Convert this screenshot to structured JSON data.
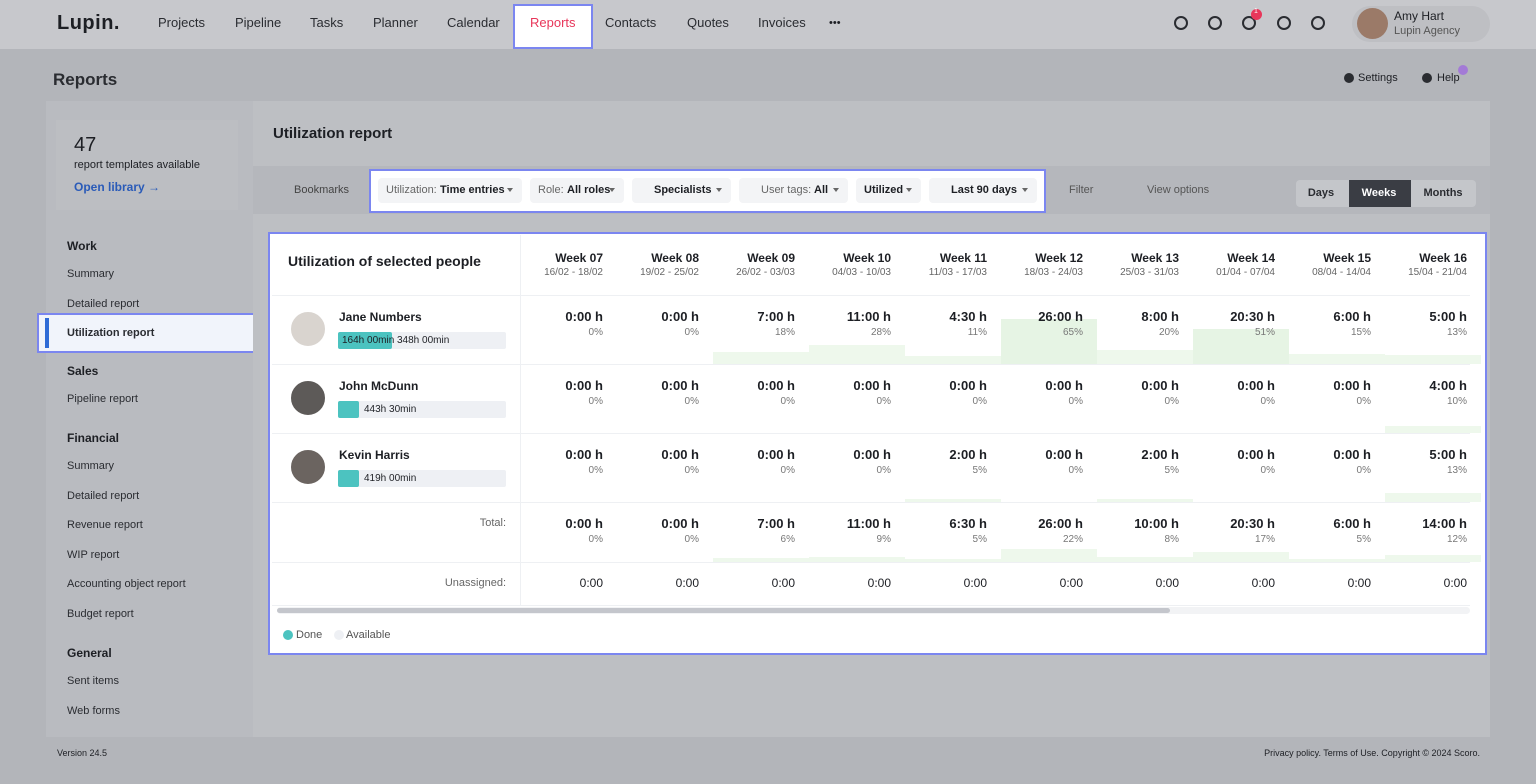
{
  "nav": {
    "logo": "Lupin.",
    "items": [
      "Projects",
      "Pipeline",
      "Tasks",
      "Planner",
      "Calendar",
      "Reports",
      "Contacts",
      "Quotes",
      "Invoices"
    ],
    "more": "•••",
    "badge": "1",
    "user_name": "Amy Hart",
    "user_org": "Lupin Agency"
  },
  "page": {
    "title": "Reports",
    "settings": "Settings",
    "help": "Help"
  },
  "sidebar": {
    "count": "47",
    "count_label": "report templates available",
    "library_link": "Open library →",
    "sections": [
      {
        "title": "Work",
        "items": [
          "Summary",
          "Detailed report",
          "Utilization report"
        ]
      },
      {
        "title": "Sales",
        "items": [
          "Pipeline report"
        ]
      },
      {
        "title": "Financial",
        "items": [
          "Summary",
          "Detailed report",
          "Revenue report",
          "WIP report",
          "Accounting object report",
          "Budget report"
        ]
      },
      {
        "title": "General",
        "items": [
          "Sent items",
          "Web forms"
        ]
      }
    ]
  },
  "report": {
    "title": "Utilization report",
    "bookmarks": "Bookmarks",
    "filters": [
      {
        "label": "Utilization:",
        "value": "Time entries"
      },
      {
        "label": "Role:",
        "value": "All roles"
      },
      {
        "label": "",
        "value": "Specialists"
      },
      {
        "label": "User tags:",
        "value": "All"
      },
      {
        "label": "",
        "value": "Utilized"
      },
      {
        "label": "",
        "value": "Last 90 days"
      }
    ],
    "filter": "Filter",
    "view_options": "View options",
    "periods": [
      "Days",
      "Weeks",
      "Months"
    ]
  },
  "table": {
    "heading": "Utilization of selected people",
    "weeks": [
      {
        "label": "Week 07",
        "range": "16/02 - 18/02"
      },
      {
        "label": "Week 08",
        "range": "19/02 - 25/02"
      },
      {
        "label": "Week 09",
        "range": "26/02 - 03/03"
      },
      {
        "label": "Week 10",
        "range": "04/03 - 10/03"
      },
      {
        "label": "Week 11",
        "range": "11/03 - 17/03"
      },
      {
        "label": "Week 12",
        "range": "18/03 - 24/03"
      },
      {
        "label": "Week 13",
        "range": "25/03 - 31/03"
      },
      {
        "label": "Week 14",
        "range": "01/04 - 07/04"
      },
      {
        "label": "Week 15",
        "range": "08/04 - 14/04"
      },
      {
        "label": "Week 16",
        "range": "15/04 - 21/04"
      }
    ],
    "people": [
      {
        "name": "Jane Numbers",
        "done": "164h 00min",
        "available": "348h 00min",
        "hours": [
          "0:00 h",
          "0:00 h",
          "7:00 h",
          "11:00 h",
          "4:30 h",
          "26:00 h",
          "8:00 h",
          "20:30 h",
          "6:00 h",
          "5:00 h"
        ],
        "percent": [
          "0%",
          "0%",
          "18%",
          "28%",
          "11%",
          "65%",
          "20%",
          "51%",
          "15%",
          "13%"
        ]
      },
      {
        "name": "John McDunn",
        "done": "443h 30min",
        "hours": [
          "0:00 h",
          "0:00 h",
          "0:00 h",
          "0:00 h",
          "0:00 h",
          "0:00 h",
          "0:00 h",
          "0:00 h",
          "0:00 h",
          "4:00 h"
        ],
        "percent": [
          "0%",
          "0%",
          "0%",
          "0%",
          "0%",
          "0%",
          "0%",
          "0%",
          "0%",
          "10%"
        ]
      },
      {
        "name": "Kevin Harris",
        "done": "419h 00min",
        "hours": [
          "0:00 h",
          "0:00 h",
          "0:00 h",
          "0:00 h",
          "2:00 h",
          "0:00 h",
          "2:00 h",
          "0:00 h",
          "0:00 h",
          "5:00 h"
        ],
        "percent": [
          "0%",
          "0%",
          "0%",
          "0%",
          "5%",
          "0%",
          "5%",
          "0%",
          "0%",
          "13%"
        ]
      }
    ],
    "total": {
      "label": "Total:",
      "hours": [
        "0:00 h",
        "0:00 h",
        "7:00 h",
        "11:00 h",
        "6:30 h",
        "26:00 h",
        "10:00 h",
        "20:30 h",
        "6:00 h",
        "14:00 h"
      ],
      "percent": [
        "0%",
        "0%",
        "6%",
        "9%",
        "5%",
        "22%",
        "8%",
        "17%",
        "5%",
        "12%"
      ]
    },
    "unassigned": {
      "label": "Unassigned:",
      "values": [
        "0:00",
        "0:00",
        "0:00",
        "0:00",
        "0:00",
        "0:00",
        "0:00",
        "0:00",
        "0:00",
        "0:00"
      ]
    },
    "legend": [
      "Done",
      "Available"
    ]
  },
  "footer": {
    "version": "Version 24.5",
    "legal": "Privacy policy. Terms of Use. Copyright © 2024 Scoro."
  }
}
